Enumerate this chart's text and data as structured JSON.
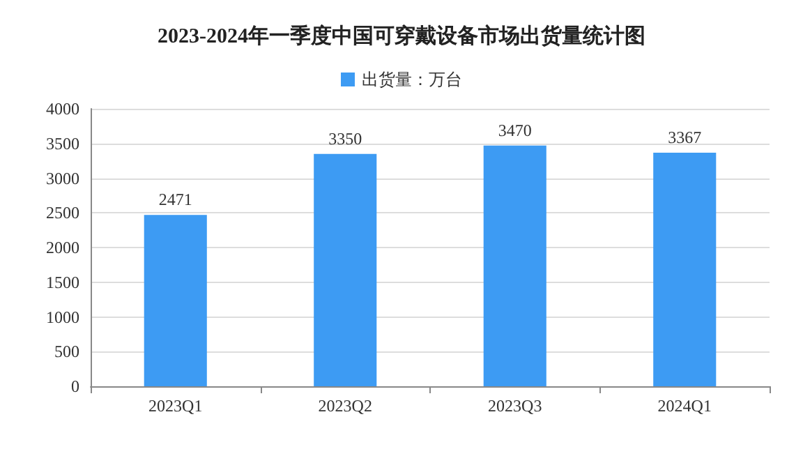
{
  "chart_data": {
    "type": "bar",
    "title": "2023-2024年一季度中国可穿戴设备市场出货量统计图",
    "categories": [
      "2023Q1",
      "2023Q2",
      "2023Q3",
      "2024Q1"
    ],
    "series": [
      {
        "name": "出货量：万台",
        "color": "#3d9bf3",
        "values": [
          2471,
          3350,
          3470,
          3367
        ]
      }
    ],
    "ylim": [
      0,
      4000
    ],
    "yticks": [
      0,
      500,
      1000,
      1500,
      2000,
      2500,
      3000,
      3500,
      4000
    ],
    "grid": "y",
    "legend": "top",
    "data_labels": true
  }
}
